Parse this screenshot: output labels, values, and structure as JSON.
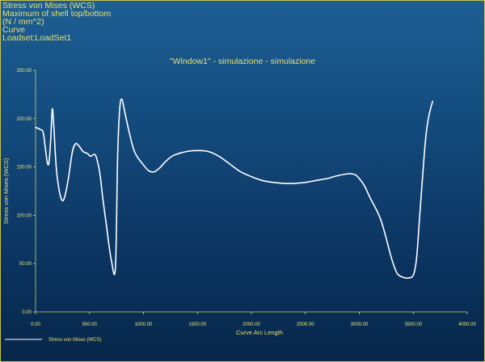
{
  "header": {
    "lines": [
      "Stress von Mises (WCS)",
      "Maximum of shell top/bottom",
      "(N / mm^2)",
      "Curve",
      "Loadset:LoadSet1"
    ]
  },
  "colors": {
    "text": "#e8e070",
    "axis": "#d8d060",
    "curve": "#ffffff",
    "background_top": "#1d5f94",
    "background_bottom": "#072749"
  },
  "chart_data": {
    "type": "line",
    "title": "\"Window1\" - simulazione - simulazione",
    "xlabel": "Curve Arc Length",
    "ylabel": "Stress von Mises (WCS)",
    "xlim": [
      0,
      4000
    ],
    "ylim": [
      0,
      250
    ],
    "xticks": [
      "0.00",
      "500.00",
      "1000.00",
      "1500.00",
      "2000.00",
      "2500.00",
      "3000.00",
      "3500.00",
      "4000.00"
    ],
    "yticks": [
      "0.00",
      "50.00",
      "100.00",
      "150.00",
      "200.00",
      "250.00"
    ],
    "grid": false,
    "legend_position": "bottom-left",
    "series": [
      {
        "name": "Stress von Mises (WCS)",
        "x": [
          0,
          40,
          70,
          90,
          110,
          125,
          140,
          155,
          170,
          185,
          200,
          230,
          260,
          300,
          340,
          370,
          400,
          440,
          480,
          510,
          550,
          575,
          600,
          620,
          650,
          700,
          740,
          760,
          780,
          800,
          830,
          870,
          920,
          1000,
          1050,
          1100,
          1150,
          1200,
          1250,
          1300,
          1400,
          1500,
          1600,
          1700,
          1800,
          1900,
          2000,
          2100,
          2200,
          2300,
          2400,
          2500,
          2600,
          2700,
          2800,
          2900,
          2960,
          3000,
          3050,
          3100,
          3200,
          3300,
          3350,
          3400,
          3450,
          3500,
          3530,
          3560,
          3600,
          3620,
          3640,
          3660,
          3680
        ],
        "y": [
          191,
          189,
          186,
          170,
          154,
          155,
          178,
          210,
          190,
          160,
          140,
          120,
          116,
          135,
          165,
          174,
          172,
          166,
          164,
          161,
          163,
          155,
          140,
          120,
          95,
          55,
          46,
          160,
          210,
          220,
          205,
          185,
          165,
          152,
          146,
          145,
          149,
          155,
          160,
          163,
          166,
          167,
          166,
          161,
          153,
          145,
          140,
          136,
          134,
          133,
          133,
          134,
          136,
          138,
          141,
          143,
          142,
          138,
          130,
          118,
          95,
          55,
          40,
          36,
          35,
          38,
          55,
          100,
          160,
          185,
          200,
          210,
          218
        ]
      }
    ]
  }
}
